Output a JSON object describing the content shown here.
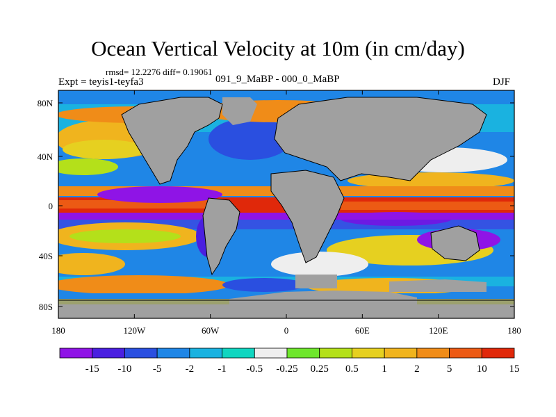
{
  "title": "Ocean Vertical Velocity at 10m (in cm/day)",
  "stats": "rmsd= 12.2276 diff= 0.19061",
  "experiment": "Expt = teyis1-teyfa3",
  "difference_label": "091_9_MaBP - 000_0_MaBP",
  "season": "DJF",
  "colors": {
    "land": "#a0a0a0",
    "palette": [
      "#8f14e6",
      "#4a1fe0",
      "#2a4fe0",
      "#1f86e6",
      "#1ab2e0",
      "#10d6c0",
      "#eeeeee",
      "#6ee62c",
      "#b4e01a",
      "#e6d020",
      "#f0b41e",
      "#f08c18",
      "#ec5a14",
      "#e0280a"
    ]
  },
  "x_axis": {
    "ticks": [
      "180",
      "120W",
      "60W",
      "0",
      "60E",
      "120E",
      "180"
    ]
  },
  "y_axis": {
    "ticks": [
      "80N",
      "40N",
      "0",
      "40S",
      "80S"
    ]
  },
  "colorbar": {
    "labels": [
      "-15",
      "-10",
      "-5",
      "-2",
      "-1",
      "-0.5",
      "-0.25",
      "0.25",
      "0.5",
      "1",
      "2",
      "5",
      "10",
      "15"
    ]
  }
}
